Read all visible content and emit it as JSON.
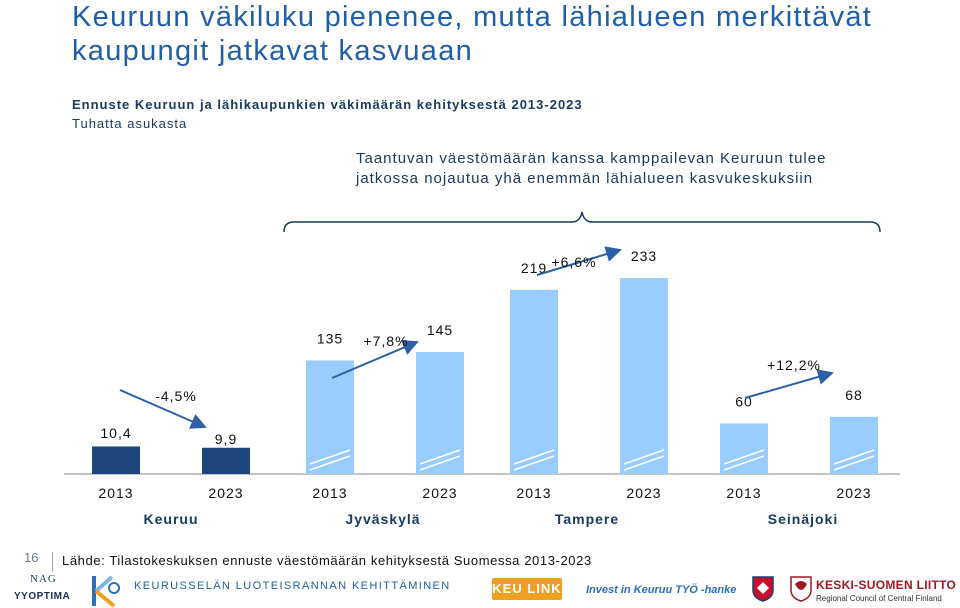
{
  "header": {
    "title": "Keuruun väkiluku pienenee, mutta lähialueen merkittävät kaupungit jatkavat kasvuaan",
    "subtitle": "Ennuste Keuruun ja lähikaupunkien väkimäärän kehityksestä 2013-2023",
    "unit": "Tuhatta asukasta",
    "callout": "Taantuvan väestömäärän kanssa kamppailevan Keuruun tulee jatkossa nojautua yhä enemmän lähialueen kasvukeskuksiin"
  },
  "chart_data": {
    "type": "bar",
    "groups": [
      {
        "name": "Keuruu",
        "bars": [
          {
            "year": "2013",
            "value": 10.4,
            "label": "10,4"
          },
          {
            "year": "2023",
            "value": 9.9,
            "label": "9,9"
          }
        ],
        "change": "-4,5%"
      },
      {
        "name": "Jyväskylä",
        "bars": [
          {
            "year": "2013",
            "value": 135,
            "label": "135"
          },
          {
            "year": "2023",
            "value": 145,
            "label": "145"
          }
        ],
        "change": "+7,8%"
      },
      {
        "name": "Tampere",
        "bars": [
          {
            "year": "2013",
            "value": 219,
            "label": "219"
          },
          {
            "year": "2023",
            "value": 233,
            "label": "233"
          }
        ],
        "change": "+6,6%"
      },
      {
        "name": "Seinäjoki",
        "bars": [
          {
            "year": "2013",
            "value": 60,
            "label": "60"
          },
          {
            "year": "2023",
            "value": 68,
            "label": "68"
          }
        ],
        "change": "+12,2%"
      }
    ],
    "colors": {
      "keuruu": "#1f467c",
      "others": "#99ccff",
      "arrow": "#2e5fa8",
      "axis": "#888888"
    },
    "notes": "Keuruu bars drawn at an enlarged scale; other groups share a common scale"
  },
  "footer": {
    "page_number": "16",
    "source": "Lähde: Tilastokeskuksen ennuste väestömäärän kehityksestä Suomessa 2013-2023",
    "logo_nag": "NAG",
    "logo_yy": "YYOPTIMA",
    "slogan": "KEURUSSELÄN LUOTEISRANNAN KEHITTÄMINEN",
    "keulink": "KEU LINK",
    "invest": "Invest in Keuruu TYÖ -hanke",
    "ks_name": "KESKI-SUOMEN LIITTO",
    "ks_sub": "Regional Council of Central Finland"
  }
}
